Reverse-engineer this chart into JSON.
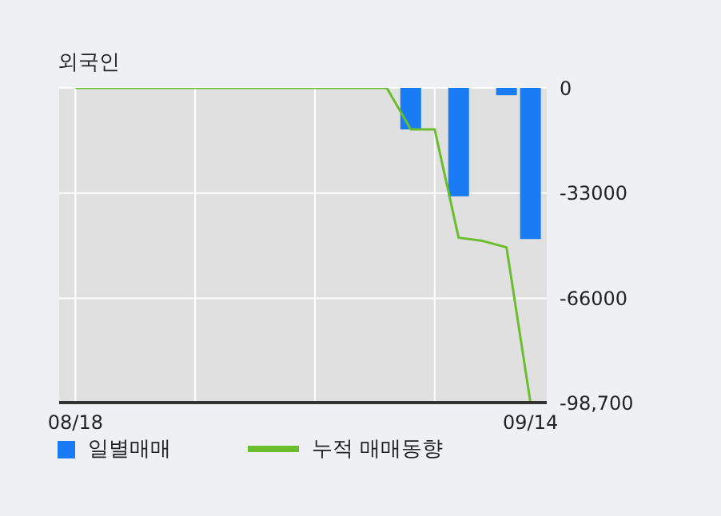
{
  "chart_data": {
    "type": "bar",
    "title": "외국인",
    "categories": [
      "08/18",
      null,
      null,
      null,
      null,
      null,
      null,
      null,
      null,
      null,
      null,
      null,
      null,
      null,
      null,
      null,
      null,
      null,
      null,
      "09/14"
    ],
    "series": [
      {
        "name": "일별매매",
        "color": "#1a7cf5",
        "values": [
          null,
          null,
          null,
          null,
          null,
          null,
          null,
          null,
          null,
          null,
          null,
          null,
          null,
          null,
          -13000,
          null,
          -34000,
          null,
          -2300,
          -47400
        ]
      },
      {
        "name": "누적 매매동향",
        "type": "line",
        "color": "#6abd2c",
        "values": [
          0,
          0,
          0,
          0,
          0,
          0,
          0,
          0,
          0,
          0,
          0,
          0,
          0,
          0,
          -13000,
          -13000,
          -47000,
          -48000,
          -50000,
          -98700
        ]
      }
    ],
    "ylim": [
      -98700,
      0
    ],
    "yticks": [
      0,
      -33000,
      -66000,
      {
        "value": -98700,
        "label": "-98,700"
      }
    ],
    "grid": true,
    "legend": "bottom",
    "marker": "none",
    "line_style": "solid"
  }
}
